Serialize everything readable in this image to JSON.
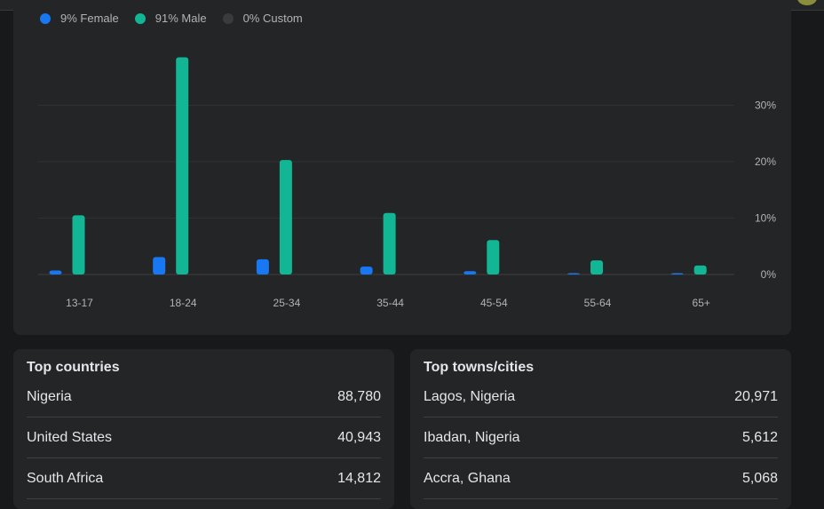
{
  "legend": [
    {
      "label": "9% Female",
      "color": "#1877f2"
    },
    {
      "label": "91% Male",
      "color": "#12b594"
    },
    {
      "label": "0% Custom",
      "color": "#3a3b3c"
    }
  ],
  "chart_data": {
    "type": "bar",
    "categories": [
      "13-17",
      "18-24",
      "25-34",
      "35-44",
      "45-54",
      "55-64",
      "65+"
    ],
    "series": [
      {
        "name": "Female",
        "color": "#1877f2",
        "values": [
          0.7,
          3.1,
          2.7,
          1.4,
          0.6,
          0.2,
          0.2
        ]
      },
      {
        "name": "Male",
        "color": "#12b594",
        "values": [
          10.5,
          38.5,
          20.3,
          10.9,
          6.1,
          2.5,
          1.6
        ]
      }
    ],
    "y_ticks": [
      "0%",
      "10%",
      "20%",
      "30%"
    ],
    "y_tick_values": [
      0,
      10,
      20,
      30
    ],
    "ylim": [
      0,
      40
    ],
    "grid": true
  },
  "top_countries": {
    "title": "Top countries",
    "rows": [
      {
        "name": "Nigeria",
        "value": "88,780"
      },
      {
        "name": "United States",
        "value": "40,943"
      },
      {
        "name": "South Africa",
        "value": "14,812"
      }
    ]
  },
  "top_cities": {
    "title": "Top towns/cities",
    "rows": [
      {
        "name": "Lagos, Nigeria",
        "value": "20,971"
      },
      {
        "name": "Ibadan, Nigeria",
        "value": "5,612"
      },
      {
        "name": "Accra, Ghana",
        "value": "5,068"
      }
    ]
  }
}
